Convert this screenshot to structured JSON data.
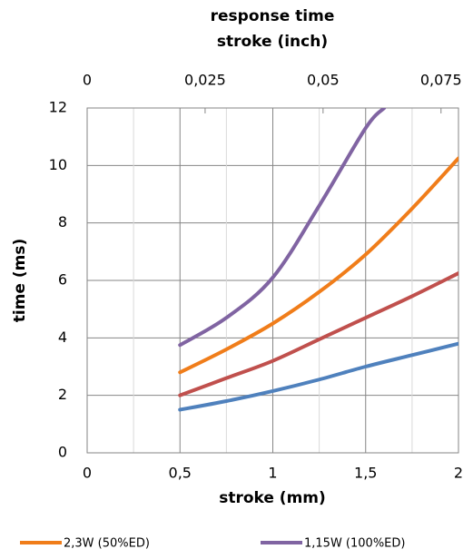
{
  "chart_data": {
    "type": "line",
    "title": "response time",
    "x2label": "stroke (inch)",
    "xlabel": "stroke (mm)",
    "ylabel": "time (ms)",
    "xlim": [
      0,
      2
    ],
    "ylim": [
      0,
      12
    ],
    "x2lim": [
      0,
      0.0787
    ],
    "xticks": [
      0,
      {
        "value": 0.5,
        "label": "0,5"
      },
      1,
      {
        "value": 1.5,
        "label": "1,5"
      },
      2
    ],
    "xminorticks": [
      0.25,
      0.75,
      1.25,
      1.75
    ],
    "x2ticks": [
      0,
      {
        "value": 0.025,
        "label": "0,025"
      },
      {
        "value": 0.05,
        "label": "0,05"
      },
      {
        "value": 0.075,
        "label": "0,075"
      }
    ],
    "yticks": [
      0,
      2,
      4,
      6,
      8,
      10,
      12
    ],
    "grid": true,
    "legend": "bottom",
    "series": [
      {
        "color": "#4f81bd",
        "x": [
          0.5,
          0.75,
          1,
          1.25,
          1.5,
          1.75,
          2
        ],
        "values": [
          1.5,
          1.8,
          2.15,
          2.55,
          3.0,
          3.4,
          3.8
        ]
      },
      {
        "color": "#c0504d",
        "x": [
          0.5,
          0.75,
          1,
          1.25,
          1.5,
          1.75,
          2
        ],
        "values": [
          2.0,
          2.6,
          3.2,
          3.95,
          4.7,
          5.45,
          6.25
        ]
      },
      {
        "name": "2,3W (50%ED)",
        "color": "#f07d1a",
        "x": [
          0.5,
          0.75,
          1,
          1.25,
          1.5,
          1.75,
          2
        ],
        "values": [
          2.8,
          3.6,
          4.5,
          5.6,
          6.9,
          8.5,
          10.25
        ]
      },
      {
        "name": "1,15W (100%ED)",
        "color": "#8064a2",
        "x": [
          0.5,
          0.75,
          1,
          1.25,
          1.5,
          1.6
        ],
        "values": [
          3.75,
          4.7,
          6.1,
          8.6,
          11.3,
          12
        ]
      }
    ]
  }
}
